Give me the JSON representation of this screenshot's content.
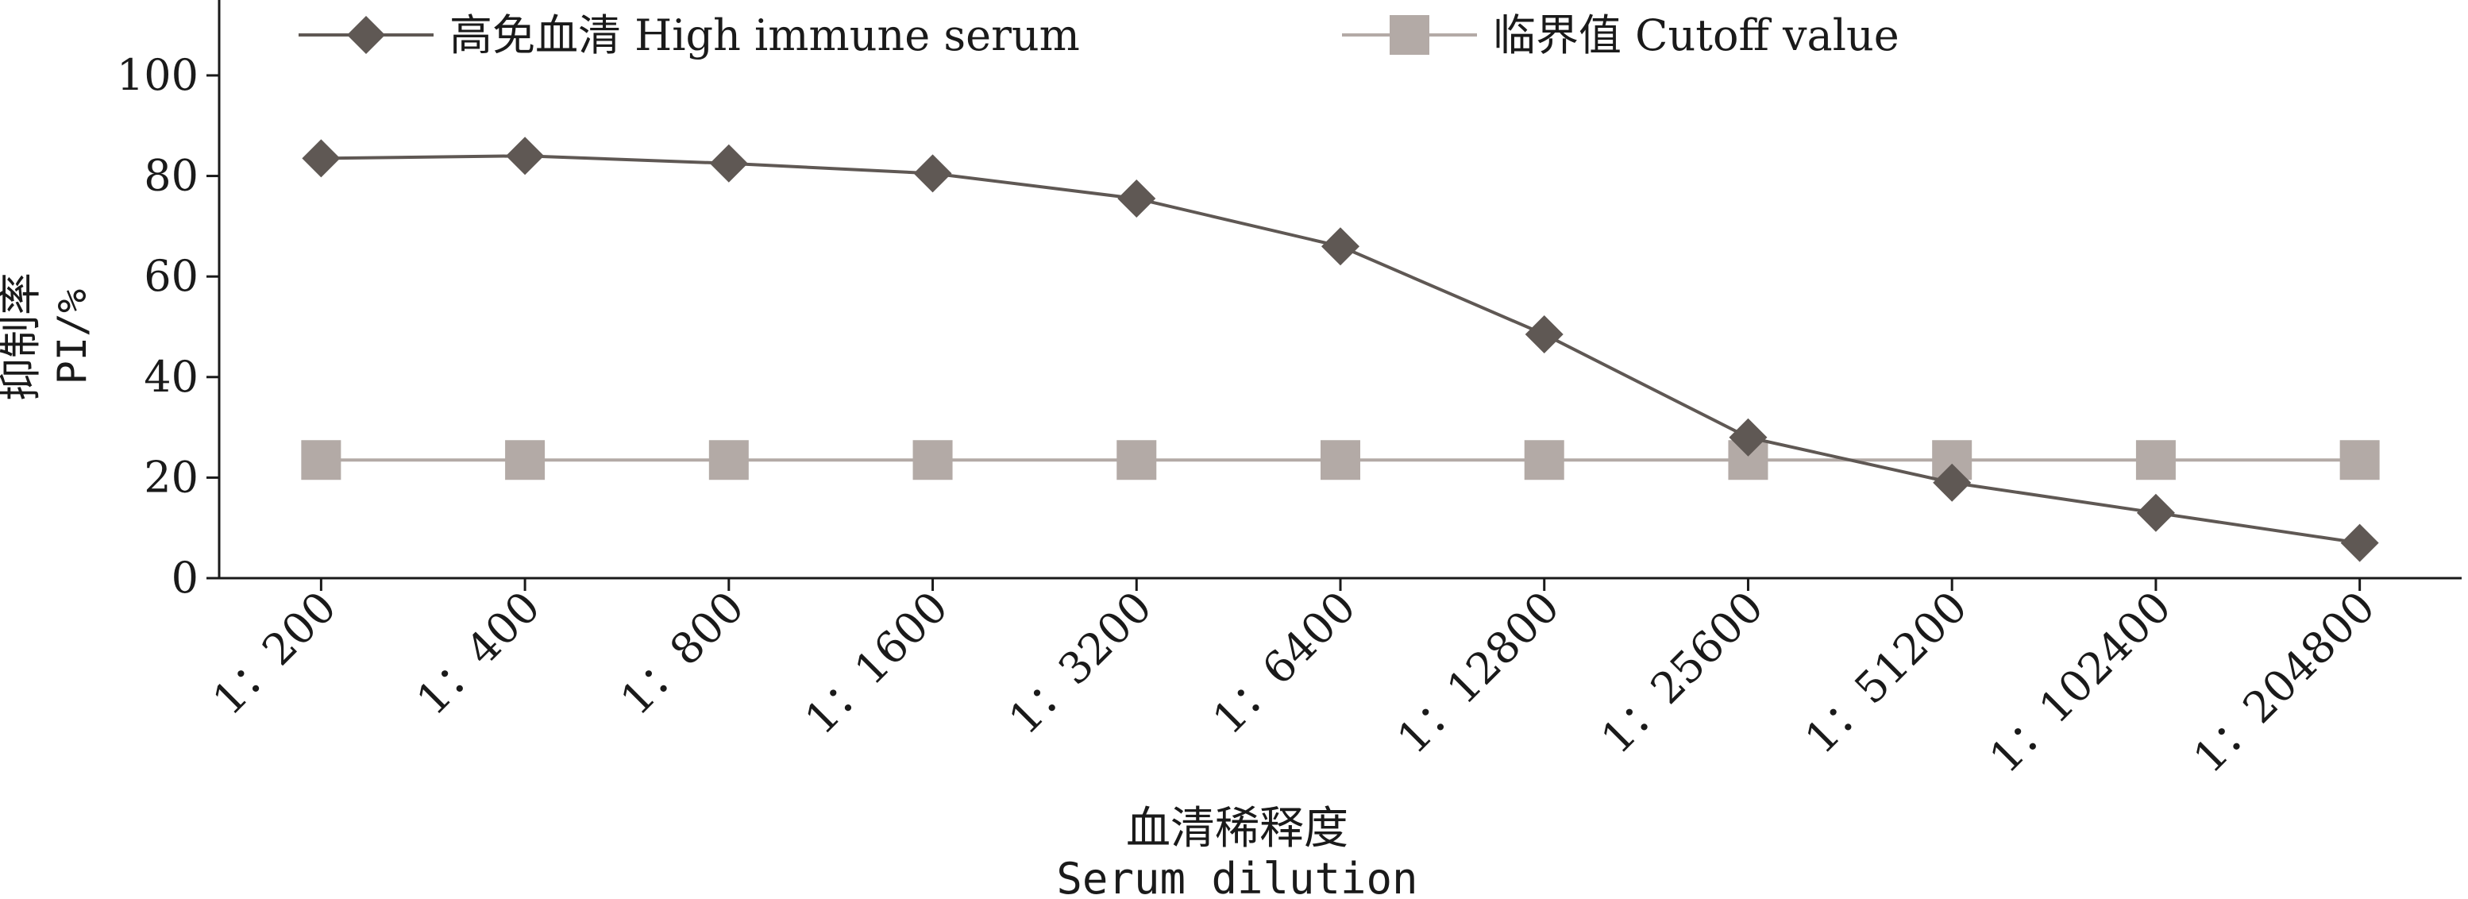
{
  "chart_data": {
    "type": "line",
    "categories": [
      "1：200",
      "1：400",
      "1：800",
      "1：1600",
      "1：3200",
      "1：6400",
      "1：12800",
      "1：25600",
      "1：51200",
      "1：102400",
      "1：204800"
    ],
    "series": [
      {
        "name": "高免血清 High immune serum",
        "marker": "diamond",
        "color": "#5f5854",
        "values": [
          83.5,
          84,
          82.5,
          80.5,
          75.5,
          66,
          48.5,
          28,
          19,
          13,
          7
        ]
      },
      {
        "name": "临界值 Cutoff  value",
        "marker": "square",
        "color": "#b3aaa6",
        "values": [
          23.5,
          23.5,
          23.5,
          23.5,
          23.5,
          23.5,
          23.5,
          23.5,
          23.5,
          23.5,
          23.5
        ]
      }
    ],
    "ylim": [
      0,
      115
    ],
    "yticks": [
      0,
      20,
      40,
      60,
      80,
      100
    ],
    "ylabel": [
      "抑制率",
      "PI/%"
    ],
    "xlabel": [
      "血清稀释度",
      "Serum dilution"
    ],
    "grid": false,
    "legend": "top"
  }
}
